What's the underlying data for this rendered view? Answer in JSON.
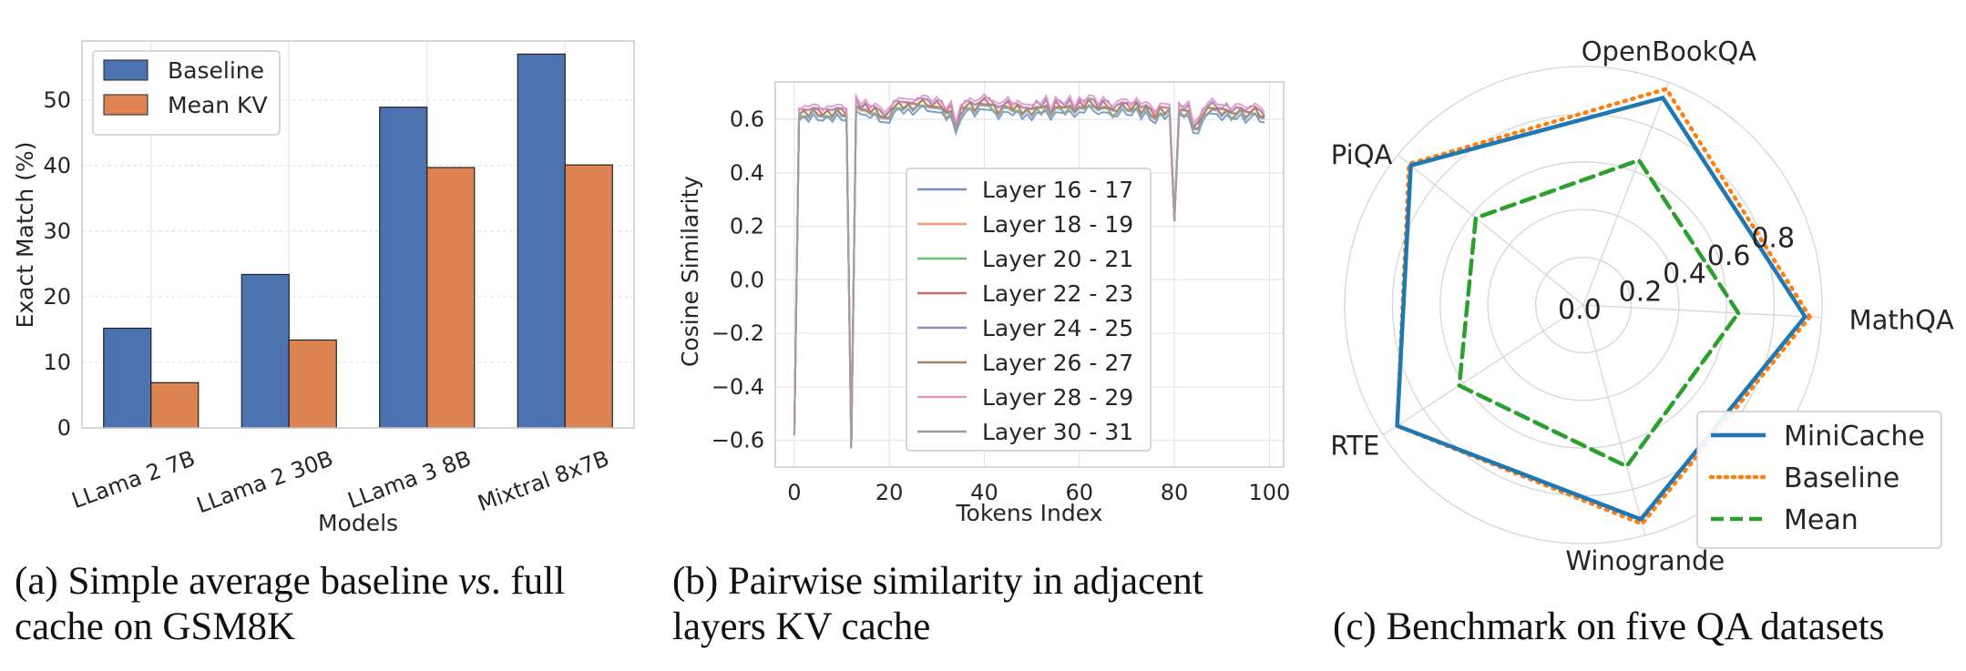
{
  "captions": {
    "a_pre": "(a) Simple average baseline ",
    "a_vs": "vs",
    "a_post": ". full",
    "a_line2": "cache on GSM8K",
    "b_line1": "(b) Pairwise similarity in adjacent",
    "b_line2": "layers KV cache",
    "c": "(c) Benchmark on five QA datasets"
  },
  "colors": {
    "baseline_bar": "#4c72b0",
    "meankv_bar": "#dd8452",
    "minicache": "#1f77b4",
    "baseline_line": "#ff7f0e",
    "mean_line": "#2ca02c"
  },
  "chart_data": [
    {
      "type": "bar",
      "xlabel": "Models",
      "ylabel": "Exact Match (%)",
      "categories": [
        "LLama 2 7B",
        "LLama 2 30B",
        "LLama 3 8B",
        "Mixtral 8x7B"
      ],
      "ylim": [
        0,
        59
      ],
      "yticks": [
        0,
        10,
        20,
        30,
        40,
        50
      ],
      "grid": true,
      "legend_position": "top-left",
      "series": [
        {
          "name": "Baseline",
          "values": [
            15.2,
            23.4,
            48.9,
            57.0
          ],
          "color": "#4c72b0"
        },
        {
          "name": "Mean KV",
          "values": [
            6.9,
            13.4,
            39.7,
            40.1
          ],
          "color": "#dd8452"
        }
      ]
    },
    {
      "type": "line",
      "xlabel": "Tokens Index",
      "ylabel": "Cosine Similarity",
      "xlim": [
        -4,
        103
      ],
      "ylim": [
        -0.7,
        0.74
      ],
      "xticks": [
        0,
        20,
        40,
        60,
        80,
        100
      ],
      "yticks": [
        -0.6,
        -0.4,
        -0.2,
        0.0,
        0.2,
        0.4,
        0.6
      ],
      "grid": true,
      "legend_position": "center",
      "x": [
        0,
        1,
        2,
        3,
        4,
        5,
        6,
        7,
        8,
        9,
        10,
        11,
        12,
        13,
        14,
        15,
        16,
        17,
        18,
        19,
        20,
        21,
        22,
        23,
        24,
        25,
        26,
        27,
        28,
        29,
        30,
        31,
        32,
        33,
        34,
        35,
        36,
        37,
        38,
        39,
        40,
        41,
        42,
        43,
        44,
        45,
        46,
        47,
        48,
        49,
        50,
        51,
        52,
        53,
        54,
        55,
        56,
        57,
        58,
        59,
        60,
        61,
        62,
        63,
        64,
        65,
        66,
        67,
        68,
        69,
        70,
        71,
        72,
        73,
        74,
        75,
        76,
        77,
        78,
        79,
        80,
        81,
        82,
        83,
        84,
        85,
        86,
        87,
        88,
        89,
        90,
        91,
        92,
        93,
        94,
        95,
        96,
        97,
        98,
        99
      ],
      "base": [
        -0.58,
        0.62,
        0.63,
        0.62,
        0.64,
        0.63,
        0.62,
        0.63,
        0.62,
        0.64,
        0.63,
        0.62,
        -0.63,
        0.66,
        0.64,
        0.65,
        0.63,
        0.64,
        0.62,
        0.61,
        0.62,
        0.65,
        0.66,
        0.65,
        0.66,
        0.65,
        0.66,
        0.67,
        0.66,
        0.65,
        0.66,
        0.65,
        0.62,
        0.64,
        0.57,
        0.63,
        0.65,
        0.66,
        0.64,
        0.66,
        0.67,
        0.66,
        0.65,
        0.63,
        0.65,
        0.66,
        0.64,
        0.65,
        0.63,
        0.64,
        0.63,
        0.65,
        0.64,
        0.66,
        0.62,
        0.66,
        0.65,
        0.64,
        0.66,
        0.63,
        0.66,
        0.65,
        0.67,
        0.66,
        0.64,
        0.66,
        0.65,
        0.63,
        0.64,
        0.66,
        0.65,
        0.64,
        0.66,
        0.63,
        0.65,
        0.63,
        0.61,
        0.64,
        0.63,
        0.64,
        0.22,
        0.64,
        0.63,
        0.64,
        0.57,
        0.58,
        0.62,
        0.64,
        0.65,
        0.64,
        0.63,
        0.64,
        0.62,
        0.63,
        0.64,
        0.62,
        0.63,
        0.64,
        0.62,
        0.61
      ],
      "series": [
        {
          "name": "Layer 16 - 17",
          "offset": -0.025,
          "color": "#6a97c7"
        },
        {
          "name": "Layer 18 - 19",
          "offset": 0.005,
          "color": "#f19a6c"
        },
        {
          "name": "Layer 20 - 21",
          "offset": -0.01,
          "color": "#6dbb73"
        },
        {
          "name": "Layer 22 - 23",
          "offset": 0.0,
          "color": "#cf6b6e"
        },
        {
          "name": "Layer 24 - 25",
          "offset": 0.012,
          "color": "#9b8bbd"
        },
        {
          "name": "Layer 26 - 27",
          "offset": -0.005,
          "color": "#a98366"
        },
        {
          "name": "Layer 28 - 29",
          "offset": 0.02,
          "color": "#e594cc"
        },
        {
          "name": "Layer 30 - 31",
          "offset": -0.015,
          "color": "#9d9d9d"
        }
      ]
    },
    {
      "type": "radar",
      "categories": [
        "MathQA",
        "OpenBookQA",
        "PiQA",
        "RTE",
        "Winogrande"
      ],
      "rticks": [
        "0.0",
        "0.2",
        "0.4",
        "0.6",
        "0.8"
      ],
      "rtick_values": [
        0.0,
        0.2,
        0.4,
        0.6,
        0.8
      ],
      "rmax": 1.0,
      "legend_position": "bottom-right",
      "series": [
        {
          "name": "MiniCache",
          "values": [
            0.93,
            0.93,
            0.93,
            0.93,
            0.93
          ],
          "color": "#1f77b4",
          "dash": "solid"
        },
        {
          "name": "Baseline",
          "values": [
            0.95,
            0.97,
            0.94,
            0.93,
            0.95
          ],
          "color": "#ff7f0e",
          "dash": "dotted"
        },
        {
          "name": "Mean",
          "values": [
            0.65,
            0.65,
            0.58,
            0.62,
            0.7
          ],
          "color": "#2ca02c",
          "dash": "dashed"
        }
      ]
    }
  ]
}
